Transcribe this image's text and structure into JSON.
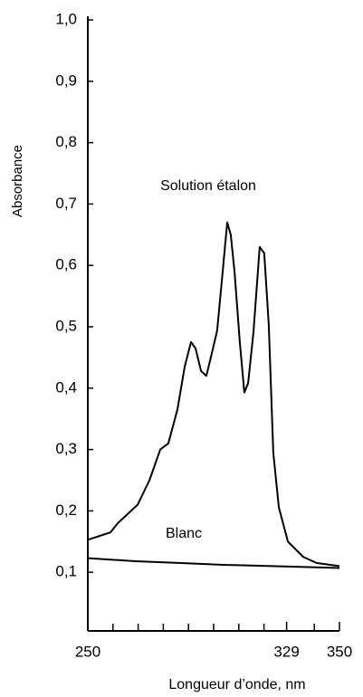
{
  "chart_data": {
    "type": "line",
    "ylabel": "Absorbance",
    "xlabel": "Longueur d’onde, nm",
    "xlim": [
      250,
      350
    ],
    "ylim": [
      0,
      1.0
    ],
    "xticks": [
      250,
      329,
      350
    ],
    "xminorticks": [
      260,
      270,
      280,
      290,
      300,
      310,
      320,
      340
    ],
    "yticks": [
      {
        "value": 0.1,
        "label": "0,1"
      },
      {
        "value": 0.2,
        "label": "0,2"
      },
      {
        "value": 0.3,
        "label": "0,3"
      },
      {
        "value": 0.4,
        "label": "0,4"
      },
      {
        "value": 0.5,
        "label": "0,5"
      },
      {
        "value": 0.6,
        "label": "0,6"
      },
      {
        "value": 0.7,
        "label": "0,7"
      },
      {
        "value": 0.8,
        "label": "0,8"
      },
      {
        "value": 0.9,
        "label": "0,9"
      },
      {
        "value": 1.0,
        "label": "1,0"
      }
    ],
    "series": [
      {
        "name": "Solution étalon",
        "color": "#000000",
        "x": [
          250,
          259,
          261.9,
          269.8,
          274.5,
          278.8,
          282,
          285.6,
          288.5,
          291,
          292.8,
          295,
          297.1,
          299.3,
          301.4,
          303.6,
          305.4,
          306.8,
          308.3,
          310.4,
          312.2,
          313.7,
          315.8,
          318.3,
          320.1,
          321.9,
          323.7,
          325.9,
          329.5,
          335.6,
          341,
          350
        ],
        "values": [
          0.153,
          0.165,
          0.18,
          0.21,
          0.25,
          0.3,
          0.31,
          0.365,
          0.435,
          0.475,
          0.465,
          0.428,
          0.42,
          0.457,
          0.494,
          0.59,
          0.67,
          0.65,
          0.59,
          0.475,
          0.393,
          0.408,
          0.49,
          0.63,
          0.62,
          0.504,
          0.295,
          0.206,
          0.15,
          0.125,
          0.115,
          0.11
        ]
      },
      {
        "name": "Blanc",
        "color": "#000000",
        "x": [
          250,
          269,
          287,
          305,
          323,
          341,
          350
        ],
        "values": [
          0.123,
          0.118,
          0.115,
          0.112,
          0.11,
          0.108,
          0.107
        ]
      }
    ]
  }
}
